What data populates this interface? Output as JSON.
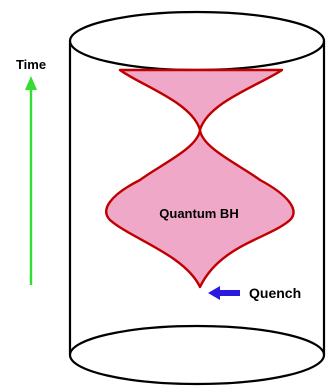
{
  "labels": {
    "time": "Time",
    "center": "Quantum BH",
    "quench": "Quench"
  },
  "colors": {
    "background": "#ffffff",
    "cylinder_stroke": "#000000",
    "region_fill": "#f0a8c8",
    "region_stroke": "#c00000",
    "time_arrow": "#33dd33",
    "quench_arrow": "#2a1adf"
  }
}
